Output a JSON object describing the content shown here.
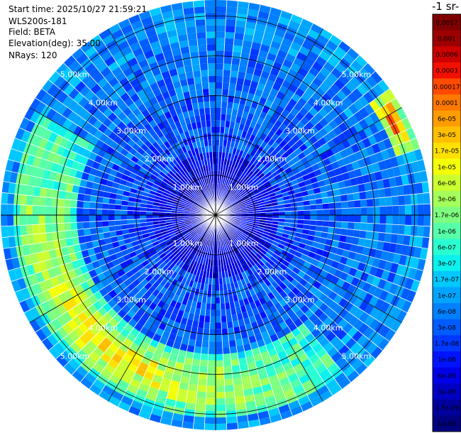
{
  "header": {
    "start_time": "Start time: 2025/10/27 21:59:21",
    "instrument": "WLS200s-181",
    "field": "Field: BETA",
    "elevation": "Elevation(deg): 35.00",
    "nrays": "NRays: 120"
  },
  "colorbar": {
    "title_fragment": "-1 sr-",
    "labels": [
      "0.0017",
      "0.001",
      "0.0006",
      "0.0003",
      "0.00017",
      "0.0001",
      "6e-05",
      "3e-05",
      "1.7e-05",
      "1e-05",
      "6e-06",
      "3e-06",
      "1.7e-06",
      "1e-06",
      "6e-07",
      "3e-07",
      "1.7e-07",
      "1e-07",
      "6e-08",
      "3e-08",
      "1.7e-08",
      "1e-08",
      "6e-09",
      "3e-09",
      "1.7e-09",
      "1e-09"
    ],
    "colors": [
      "#7f0000",
      "#9c0000",
      "#cc0000",
      "#f21000",
      "#ff4a00",
      "#ff7800",
      "#ff9c00",
      "#ffbf00",
      "#ffe000",
      "#f4ff08",
      "#ccff30",
      "#a4ff5a",
      "#7eff80",
      "#56ffa8",
      "#2affd2",
      "#0cf0ee",
      "#00c8ff",
      "#00a4ff",
      "#0080ff",
      "#005cff",
      "#0038ff",
      "#0014ff",
      "#0000e8",
      "#0000c4",
      "#00009c",
      "#000080"
    ]
  },
  "chart_data": {
    "type": "heatmap",
    "projection": "polar PPI",
    "field": "BETA",
    "n_rays": 120,
    "range_km": [
      0,
      5.4
    ],
    "range_rings_km": [
      1,
      2,
      3,
      4,
      5
    ],
    "ring_labels": [
      "1.00km",
      "2.00km",
      "3.00km",
      "4.00km",
      "5.00km"
    ],
    "radials_deg": [
      0,
      30,
      60,
      90,
      120,
      150,
      180,
      210,
      240,
      270,
      300,
      330
    ],
    "color_scale": "log",
    "value_range": [
      1e-09,
      0.0017
    ],
    "features": [
      {
        "description": "enhanced backscatter arc (south sector)",
        "azimuth_deg": [
          150,
          290
        ],
        "range_km": [
          3.6,
          5.0
        ],
        "value": 1.7e-05
      },
      {
        "description": "enhanced backscatter streak (north-east)",
        "azimuth_deg": [
          55,
          70
        ],
        "range_km": [
          4.8,
          5.3
        ],
        "value": 0.0003
      }
    ]
  }
}
